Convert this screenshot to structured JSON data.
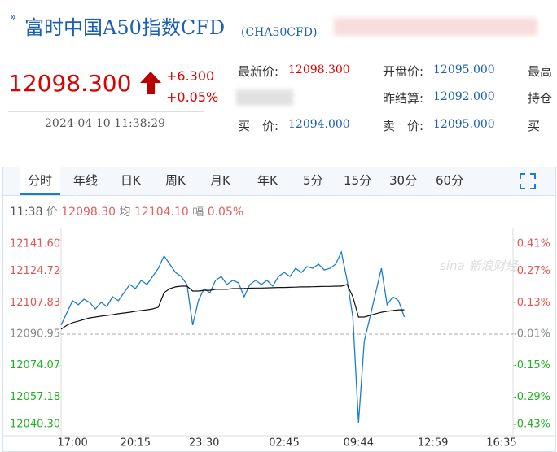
{
  "header": {
    "title": "富时中国A50指数CFD",
    "code": "(CHA50CFD)"
  },
  "quote": {
    "price": "12098.300",
    "change": "+6.300",
    "change_pct": "+0.05%",
    "datetime": "2024-04-10 11:38:29",
    "fields": [
      [
        "最新价:",
        "12098.300"
      ],
      [
        "开盘价:",
        "12095.000"
      ],
      [
        "最高"
      ],
      [],
      [
        "昨结算:",
        "12092.000"
      ],
      [
        "持仓"
      ],
      [
        "买　价:",
        "12094.000"
      ],
      [
        "卖　价:",
        "12095.000"
      ],
      [
        "买"
      ]
    ]
  },
  "tabs": [
    "分时",
    "年线",
    "日K",
    "周K",
    "月K",
    "年K",
    "5分",
    "15分",
    "30分",
    "60分"
  ],
  "info": {
    "time": "11:38",
    "price_label": "价",
    "price": "12098.30",
    "avg_label": "均",
    "avg": "12104.10",
    "pct_label": "幅",
    "pct": "0.05%"
  },
  "watermark": "新浪财经",
  "chart_data": {
    "type": "line",
    "categories": [
      null,
      null,
      "17:00",
      null,
      null,
      null,
      null,
      null,
      null,
      null,
      null,
      null,
      null,
      "20:15",
      null,
      null,
      null,
      null,
      null,
      null,
      null,
      null,
      null,
      null,
      null,
      "23:30",
      null,
      null,
      null,
      null,
      null,
      null,
      null,
      null,
      null,
      null,
      null,
      null,
      null,
      "02:45",
      null,
      null,
      null,
      null,
      null,
      null,
      null,
      null,
      null,
      null,
      null,
      null,
      "09:44",
      null,
      null,
      null,
      null,
      null,
      null,
      null,
      null,
      null,
      null,
      null,
      null,
      "12:59",
      null,
      null,
      null,
      null,
      null,
      null,
      null,
      null,
      null,
      null,
      null,
      "16:35",
      null,
      null
    ],
    "series": [
      {
        "name": "价",
        "color": "#1a7dd0",
        "values": [
          12095.8,
          12102.3,
          12108.9,
          12106.7,
          12109.7,
          12108.0,
          12104.5,
          12108.0,
          12105.8,
          12111.0,
          12108.9,
          12113.2,
          12117.6,
          12115.4,
          12119.8,
          12117.6,
          12121.9,
          12126.3,
          12132.9,
          12128.5,
          12124.1,
          12121.9,
          12117.6,
          12095.8,
          12108.9,
          12115.4,
          12113.2,
          12119.8,
          12121.9,
          12117.6,
          12119.8,
          12118.5,
          12111.0,
          12117.6,
          12119.8,
          12117.6,
          12119.8,
          12116.7,
          12121.9,
          12124.1,
          12121.9,
          12126.3,
          12124.1,
          12127.2,
          12126.3,
          12128.5,
          12125.4,
          12126.3,
          12128.5,
          12135.0,
          12119.8,
          12100.1,
          12043.4,
          12087.0,
          12100.1,
          12113.2,
          12126.3,
          12106.7,
          12111.0,
          12108.9,
          12100.1,
          null,
          null,
          null,
          null,
          null,
          null,
          null,
          null,
          null,
          null,
          null,
          null,
          null,
          null,
          null,
          null,
          null,
          null,
          null
        ]
      },
      {
        "name": "均",
        "color": "#111111",
        "values": [
          12093.6,
          12095.7,
          12097.1,
          12097.9,
          12098.8,
          12099.7,
          12100.1,
          12100.6,
          12101.0,
          12101.4,
          12101.9,
          12102.3,
          12102.7,
          12103.2,
          12103.6,
          12104.0,
          12104.5,
          12105.4,
          12113.2,
          12115.4,
          12116.3,
          12116.7,
          12116.7,
          12114.1,
          12114.1,
          12114.5,
          12114.5,
          12115.0,
          12115.0,
          12115.0,
          12115.4,
          12115.4,
          12115.5,
          12115.6,
          12115.7,
          12115.7,
          12115.8,
          12115.9,
          12116.0,
          12116.0,
          12116.1,
          12116.2,
          12116.3,
          12116.3,
          12116.4,
          12116.5,
          12116.6,
          12116.6,
          12116.7,
          12116.7,
          12117.6,
          12111.0,
          12100.1,
          12100.1,
          12101.0,
          12101.9,
          12102.7,
          12103.2,
          12103.6,
          12104.0,
          12104.0,
          null,
          null,
          null,
          null,
          null,
          null,
          null,
          null,
          null,
          null,
          null,
          null,
          null,
          null,
          null,
          null,
          null,
          null,
          null
        ]
      }
    ],
    "ylim": [
      12040.3,
      12141.6
    ],
    "yticks": [
      {
        "value": 12141.6,
        "label": "12141.60"
      },
      12124.72,
      12107.83,
      12090.95,
      12074.07,
      12057.18,
      {
        "value": 12040.3,
        "label": "12040.30"
      }
    ],
    "y2lim": [
      -0.43,
      0.41
    ],
    "y2ticks": [
      {
        "value": 0.41,
        "label": "0.41%"
      },
      {
        "value": 0.27,
        "label": "0.27%"
      },
      {
        "value": 0.13,
        "label": "0.13%"
      },
      {
        "value": -0.01,
        "label": "-0.01%"
      },
      {
        "value": -0.15,
        "label": "-0.15%"
      },
      {
        "value": -0.29,
        "label": "-0.29%"
      },
      {
        "value": -0.43,
        "label": "-0.43%"
      }
    ],
    "baseline": 12090.95
  }
}
